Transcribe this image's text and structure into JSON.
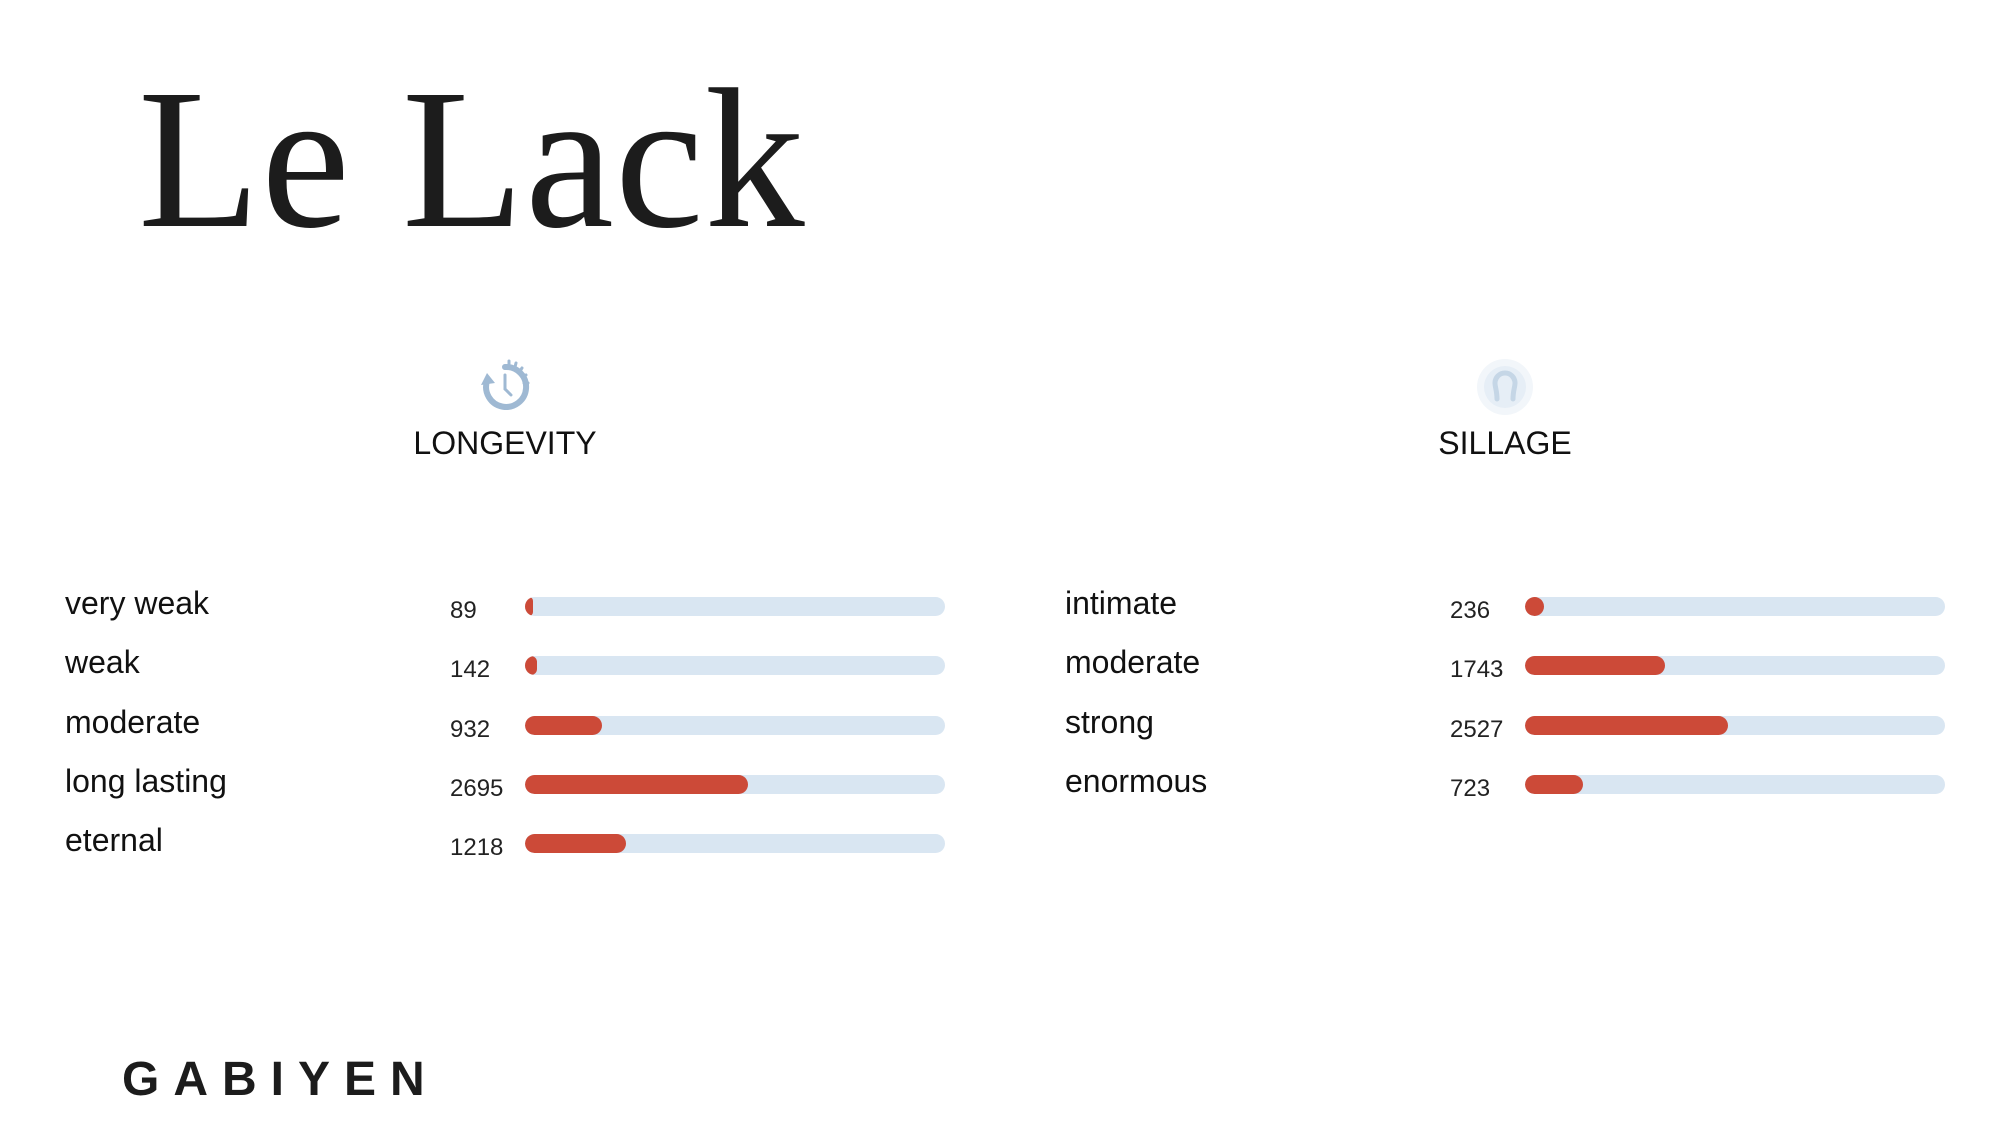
{
  "title": "Le Lack",
  "brand": "GABIYEN",
  "colors": {
    "fill": "#cc4a38",
    "track": "#d9e6f2",
    "icon": "#9fb9d3"
  },
  "longevity": {
    "heading": "LONGEVITY",
    "icon": "clock-arrow-icon",
    "rows": [
      {
        "label": "very weak",
        "count": "89"
      },
      {
        "label": "weak",
        "count": "142"
      },
      {
        "label": "moderate",
        "count": "932"
      },
      {
        "label": "long lasting",
        "count": "2695"
      },
      {
        "label": "eternal",
        "count": "1218"
      }
    ]
  },
  "sillage": {
    "heading": "SILLAGE",
    "icon": "person-aura-icon",
    "rows": [
      {
        "label": "intimate",
        "count": "236"
      },
      {
        "label": "moderate",
        "count": "1743"
      },
      {
        "label": "strong",
        "count": "2527"
      },
      {
        "label": "enormous",
        "count": "723"
      }
    ]
  }
}
